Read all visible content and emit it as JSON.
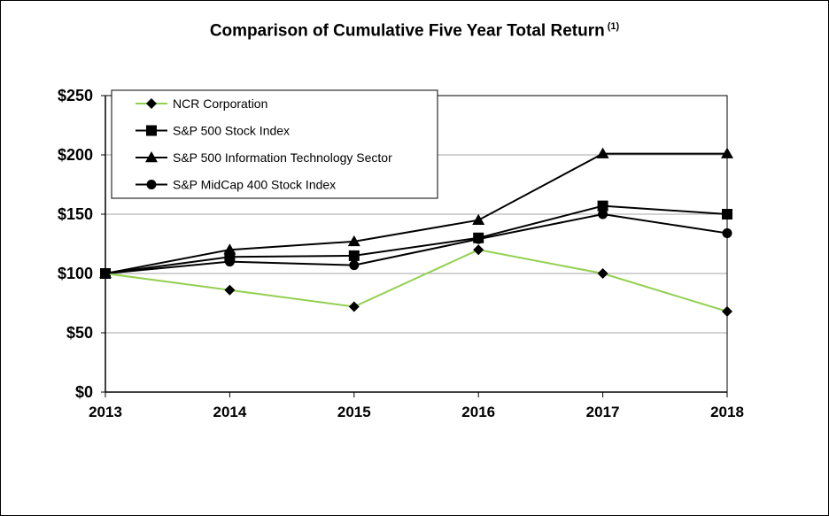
{
  "chart_data": {
    "type": "line",
    "title": "Comparison of Cumulative Five Year Total Return",
    "title_note": "(1)",
    "x": [
      "2013",
      "2014",
      "2015",
      "2016",
      "2017",
      "2018"
    ],
    "ylim": [
      0,
      250
    ],
    "yticks": [
      0,
      50,
      100,
      150,
      200,
      250
    ],
    "ytick_labels": [
      "$0",
      "$50",
      "$100",
      "$150",
      "$200",
      "$250"
    ],
    "grid": true,
    "legend_position": "top-left",
    "series": [
      {
        "name": "NCR Corporation",
        "marker": "diamond",
        "color": "#92d050",
        "values": [
          100,
          86,
          72,
          120,
          100,
          68
        ]
      },
      {
        "name": "S&P 500 Stock Index",
        "marker": "square",
        "color": "#000000",
        "values": [
          100,
          114,
          115,
          130,
          157,
          150
        ]
      },
      {
        "name": "S&P 500 Information Technology Sector",
        "marker": "triangle",
        "color": "#000000",
        "values": [
          100,
          120,
          127,
          145,
          201,
          201
        ]
      },
      {
        "name": "S&P MidCap 400 Stock Index",
        "marker": "circle",
        "color": "#000000",
        "values": [
          100,
          110,
          107,
          129,
          150,
          134
        ]
      }
    ]
  }
}
